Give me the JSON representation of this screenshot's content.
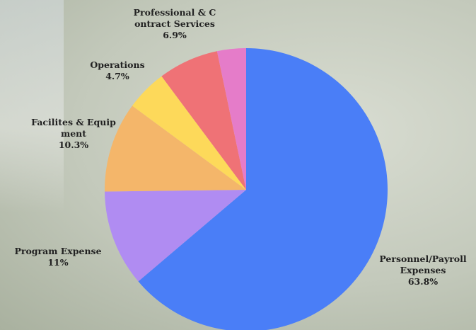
{
  "chart_data": {
    "type": "pie",
    "categories": [
      "Personnel/Payroll Expenses",
      "Program Expense",
      "Facilites & Equipment",
      "Operations",
      "Professional & Contract Services",
      null
    ],
    "values": [
      63.8,
      11,
      10.3,
      4.7,
      6.9,
      3.3
    ],
    "value_labels": [
      "63.8%",
      "11%",
      "10.3%",
      "4.7%",
      "6.9%",
      null
    ],
    "colors": [
      "#4a7ef7",
      "#b08cf2",
      "#f4b66a",
      "#fdd95a",
      "#ef7276",
      "#e57cc9"
    ]
  }
}
